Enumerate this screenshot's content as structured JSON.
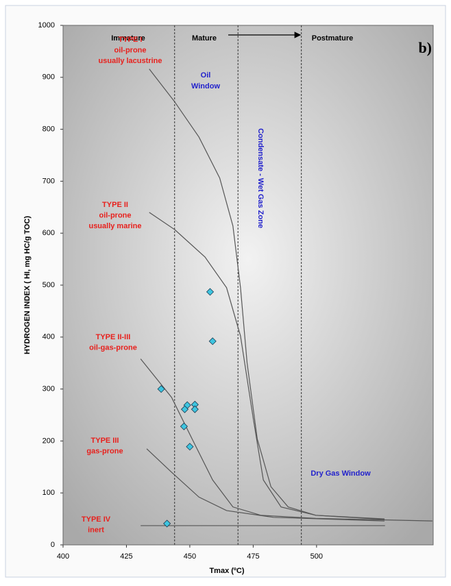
{
  "chart_data": {
    "type": "scatter",
    "label_b": "b)",
    "x_label": "Tmax (ºC)",
    "y_label": "HYDROGEN INDEX ( HI, mg HC/g TOC)",
    "xlim": [
      400,
      546
    ],
    "ylim": [
      0,
      1000
    ],
    "xticks": [
      400,
      425,
      450,
      475,
      500
    ],
    "yticks": [
      0,
      100,
      200,
      300,
      400,
      500,
      600,
      700,
      800,
      900,
      1000
    ],
    "zones": [
      "Immature",
      "Mature",
      "Postmature"
    ],
    "zone_boundaries": [
      444,
      469,
      494
    ],
    "oil_window": [
      "Oil",
      "Window"
    ],
    "condensate_zone": "Condensate - Wet Gas Zone",
    "dry_gas_window": "Dry Gas Window",
    "point_color": "#3ec5e0",
    "curve_color": "#555555",
    "points": {
      "x": [
        458,
        459,
        438.7,
        449,
        448,
        452,
        452,
        447.7,
        450,
        441
      ],
      "y": [
        487,
        392,
        300,
        269,
        261,
        270,
        261,
        228,
        189,
        41
      ]
    },
    "curves": [
      {
        "label": [
          "TYPE I",
          "oil-prone",
          "usually lacustrine"
        ],
        "x": [
          434,
          444,
          453.6,
          461.8,
          467,
          470,
          472.6,
          476.6,
          482,
          488.8,
          499.7,
          526.8
        ],
        "y": [
          916,
          853,
          785,
          706,
          614,
          495,
          350,
          204,
          112,
          73,
          57,
          50
        ]
      },
      {
        "label": [
          "TYPE II",
          "oil-prone",
          "usually marine"
        ],
        "x": [
          434,
          444,
          456,
          464.5,
          470,
          475,
          479,
          486,
          499.7,
          526.8
        ],
        "y": [
          640,
          607,
          554,
          495,
          402,
          244,
          125,
          73,
          57,
          49
        ]
      },
      {
        "label": [
          "TYPE II-III",
          "oil-gas-prone"
        ],
        "x": [
          430.6,
          442.8,
          450.9,
          459,
          467,
          478,
          499.7,
          545.7
        ],
        "y": [
          358,
          284,
          204,
          125,
          73,
          57,
          51,
          46
        ]
      },
      {
        "label": [
          "TYPE III",
          "gas-prone"
        ],
        "x": [
          433,
          443,
          453.6,
          464.5,
          483,
          526.8
        ],
        "y": [
          185,
          139,
          92,
          66,
          53,
          46
        ]
      },
      {
        "label": [
          "TYPE IV",
          "inert"
        ],
        "x": [
          430.6,
          527
        ],
        "y": [
          37,
          37
        ]
      }
    ]
  }
}
